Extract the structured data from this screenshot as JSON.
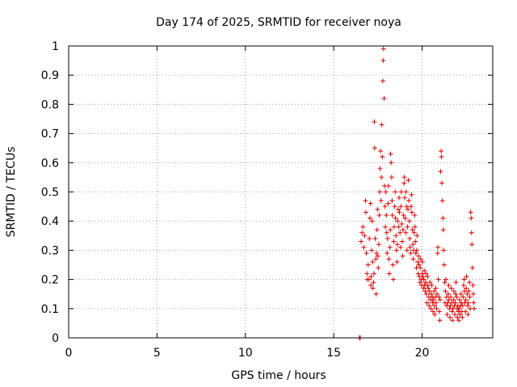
{
  "chart_data": {
    "type": "scatter",
    "title": "Day 174 of 2025, SRMTID for receiver noya",
    "xlabel": "GPS time / hours",
    "ylabel": "SRMTID / TECUs",
    "xlim": [
      0,
      24
    ],
    "ylim": [
      0,
      1
    ],
    "xticks": [
      0,
      5,
      10,
      15,
      20
    ],
    "xtick_labels": [
      "0",
      "5",
      "10",
      "15",
      "20"
    ],
    "yticks": [
      0,
      0.1,
      0.2,
      0.3,
      0.4,
      0.5,
      0.6,
      0.7,
      0.8,
      0.9,
      1
    ],
    "ytick_labels": [
      "0",
      "0.1",
      "0.2",
      "0.3",
      "0.4",
      "0.5",
      "0.6",
      "0.7",
      "0.8",
      "0.9",
      "1"
    ],
    "grid": true,
    "marker": "+",
    "color": "#e00000",
    "series": [
      {
        "name": "SRMTID",
        "points": [
          [
            16.45,
            0.0
          ],
          [
            16.5,
            0.0
          ],
          [
            16.55,
            0.33
          ],
          [
            16.6,
            0.36
          ],
          [
            16.65,
            0.38
          ],
          [
            16.7,
            0.31
          ],
          [
            16.75,
            0.35
          ],
          [
            16.8,
            0.47
          ],
          [
            16.82,
            0.43
          ],
          [
            16.85,
            0.29
          ],
          [
            16.88,
            0.22
          ],
          [
            16.9,
            0.2
          ],
          [
            16.95,
            0.25
          ],
          [
            17.0,
            0.2
          ],
          [
            17.02,
            0.34
          ],
          [
            17.05,
            0.41
          ],
          [
            17.08,
            0.46
          ],
          [
            17.1,
            0.18
          ],
          [
            17.12,
            0.21
          ],
          [
            17.15,
            0.3
          ],
          [
            17.18,
            0.4
          ],
          [
            17.2,
            0.26
          ],
          [
            17.22,
            0.17
          ],
          [
            17.25,
            0.19
          ],
          [
            17.28,
            0.22
          ],
          [
            17.3,
            0.74
          ],
          [
            17.32,
            0.65
          ],
          [
            17.35,
            0.34
          ],
          [
            17.38,
            0.27
          ],
          [
            17.4,
            0.15
          ],
          [
            17.42,
            0.29
          ],
          [
            17.45,
            0.37
          ],
          [
            17.48,
            0.44
          ],
          [
            17.5,
            0.28
          ],
          [
            17.52,
            0.24
          ],
          [
            17.55,
            0.32
          ],
          [
            17.58,
            0.42
          ],
          [
            17.6,
            0.5
          ],
          [
            17.62,
            0.58
          ],
          [
            17.65,
            0.64
          ],
          [
            17.68,
            0.47
          ],
          [
            17.7,
            0.55
          ],
          [
            17.72,
            0.73
          ],
          [
            17.75,
            0.62
          ],
          [
            17.78,
            0.88
          ],
          [
            17.8,
            0.95
          ],
          [
            17.82,
            0.99
          ],
          [
            17.85,
            0.82
          ],
          [
            17.88,
            0.52
          ],
          [
            17.9,
            0.45
          ],
          [
            17.92,
            0.38
          ],
          [
            17.95,
            0.5
          ],
          [
            17.98,
            0.42
          ],
          [
            18.0,
            0.36
          ],
          [
            18.02,
            0.29
          ],
          [
            18.05,
            0.34
          ],
          [
            18.08,
            0.46
          ],
          [
            18.1,
            0.52
          ],
          [
            18.12,
            0.27
          ],
          [
            18.15,
            0.22
          ],
          [
            18.18,
            0.31
          ],
          [
            18.2,
            0.37
          ],
          [
            18.22,
            0.63
          ],
          [
            18.25,
            0.6
          ],
          [
            18.28,
            0.55
          ],
          [
            18.3,
            0.47
          ],
          [
            18.32,
            0.42
          ],
          [
            18.35,
            0.25
          ],
          [
            18.38,
            0.2
          ],
          [
            18.4,
            0.33
          ],
          [
            18.42,
            0.38
          ],
          [
            18.45,
            0.45
          ],
          [
            18.48,
            0.5
          ],
          [
            18.5,
            0.41
          ],
          [
            18.52,
            0.35
          ],
          [
            18.55,
            0.3
          ],
          [
            18.58,
            0.26
          ],
          [
            18.6,
            0.32
          ],
          [
            18.62,
            0.4
          ],
          [
            18.65,
            0.44
          ],
          [
            18.68,
            0.38
          ],
          [
            18.7,
            0.48
          ],
          [
            18.72,
            0.43
          ],
          [
            18.75,
            0.36
          ],
          [
            18.78,
            0.31
          ],
          [
            18.8,
            0.45
          ],
          [
            18.82,
            0.5
          ],
          [
            18.85,
            0.39
          ],
          [
            18.88,
            0.33
          ],
          [
            18.9,
            0.28
          ],
          [
            18.92,
            0.37
          ],
          [
            18.95,
            0.42
          ],
          [
            18.98,
            0.53
          ],
          [
            19.0,
            0.55
          ],
          [
            19.02,
            0.48
          ],
          [
            19.05,
            0.41
          ],
          [
            19.08,
            0.36
          ],
          [
            19.1,
            0.5
          ],
          [
            19.12,
            0.45
          ],
          [
            19.15,
            0.3
          ],
          [
            19.18,
            0.38
          ],
          [
            19.2,
            0.44
          ],
          [
            19.22,
            0.54
          ],
          [
            19.25,
            0.47
          ],
          [
            19.28,
            0.4
          ],
          [
            19.3,
            0.34
          ],
          [
            19.32,
            0.31
          ],
          [
            19.35,
            0.29
          ],
          [
            19.38,
            0.45
          ],
          [
            19.4,
            0.49
          ],
          [
            19.42,
            0.43
          ],
          [
            19.45,
            0.37
          ],
          [
            19.48,
            0.32
          ],
          [
            19.5,
            0.27
          ],
          [
            19.52,
            0.3
          ],
          [
            19.55,
            0.36
          ],
          [
            19.58,
            0.42
          ],
          [
            19.6,
            0.38
          ],
          [
            19.62,
            0.33
          ],
          [
            19.65,
            0.29
          ],
          [
            19.68,
            0.24
          ],
          [
            19.7,
            0.3
          ],
          [
            19.72,
            0.35
          ],
          [
            19.75,
            0.26
          ],
          [
            19.78,
            0.22
          ],
          [
            19.8,
            0.28
          ],
          [
            19.82,
            0.25
          ],
          [
            19.85,
            0.21
          ],
          [
            19.88,
            0.19
          ],
          [
            19.9,
            0.24
          ],
          [
            19.92,
            0.27
          ],
          [
            19.95,
            0.2
          ],
          [
            19.98,
            0.18
          ],
          [
            20.0,
            0.22
          ],
          [
            20.02,
            0.26
          ],
          [
            20.05,
            0.21
          ],
          [
            20.08,
            0.17
          ],
          [
            20.1,
            0.2
          ],
          [
            20.12,
            0.23
          ],
          [
            20.15,
            0.18
          ],
          [
            20.18,
            0.16
          ],
          [
            20.2,
            0.19
          ],
          [
            20.22,
            0.22
          ],
          [
            20.25,
            0.15
          ],
          [
            20.28,
            0.12
          ],
          [
            20.3,
            0.18
          ],
          [
            20.32,
            0.21
          ],
          [
            20.35,
            0.17
          ],
          [
            20.38,
            0.14
          ],
          [
            20.4,
            0.11
          ],
          [
            20.42,
            0.16
          ],
          [
            20.45,
            0.19
          ],
          [
            20.48,
            0.13
          ],
          [
            20.5,
            0.1
          ],
          [
            20.52,
            0.15
          ],
          [
            20.55,
            0.18
          ],
          [
            20.58,
            0.14
          ],
          [
            20.6,
            0.12
          ],
          [
            20.62,
            0.09
          ],
          [
            20.65,
            0.13
          ],
          [
            20.68,
            0.16
          ],
          [
            20.7,
            0.11
          ],
          [
            20.72,
            0.08
          ],
          [
            20.75,
            0.14
          ],
          [
            20.78,
            0.17
          ],
          [
            20.8,
            0.12
          ],
          [
            20.82,
            0.1
          ],
          [
            20.85,
            0.15
          ],
          [
            20.88,
            0.29
          ],
          [
            20.9,
            0.31
          ],
          [
            20.92,
            0.2
          ],
          [
            20.95,
            0.14
          ],
          [
            20.98,
            0.09
          ],
          [
            21.0,
            0.06
          ],
          [
            21.02,
            0.13
          ],
          [
            21.05,
            0.57
          ],
          [
            21.08,
            0.64
          ],
          [
            21.1,
            0.62
          ],
          [
            21.12,
            0.53
          ],
          [
            21.15,
            0.47
          ],
          [
            21.18,
            0.41
          ],
          [
            21.2,
            0.37
          ],
          [
            21.22,
            0.3
          ],
          [
            21.25,
            0.25
          ],
          [
            21.28,
            0.19
          ],
          [
            21.3,
            0.12
          ],
          [
            21.32,
            0.16
          ],
          [
            21.35,
            0.2
          ],
          [
            21.38,
            0.14
          ],
          [
            21.4,
            0.11
          ],
          [
            21.42,
            0.08
          ],
          [
            21.45,
            0.12
          ],
          [
            21.48,
            0.15
          ],
          [
            21.5,
            0.18
          ],
          [
            21.52,
            0.13
          ],
          [
            21.55,
            0.1
          ],
          [
            21.58,
            0.07
          ],
          [
            21.6,
            0.11
          ],
          [
            21.62,
            0.14
          ],
          [
            21.65,
            0.17
          ],
          [
            21.68,
            0.12
          ],
          [
            21.7,
            0.09
          ],
          [
            21.72,
            0.06
          ],
          [
            21.75,
            0.1
          ],
          [
            21.78,
            0.13
          ],
          [
            21.8,
            0.16
          ],
          [
            21.82,
            0.11
          ],
          [
            21.85,
            0.08
          ],
          [
            21.88,
            0.12
          ],
          [
            21.9,
            0.15
          ],
          [
            21.92,
            0.19
          ],
          [
            21.95,
            0.14
          ],
          [
            21.98,
            0.1
          ],
          [
            22.0,
            0.07
          ],
          [
            22.02,
            0.11
          ],
          [
            22.05,
            0.09
          ],
          [
            22.08,
            0.06
          ],
          [
            22.1,
            0.1
          ],
          [
            22.12,
            0.13
          ],
          [
            22.15,
            0.08
          ],
          [
            22.18,
            0.11
          ],
          [
            22.2,
            0.15
          ],
          [
            22.22,
            0.12
          ],
          [
            22.25,
            0.09
          ],
          [
            22.28,
            0.07
          ],
          [
            22.3,
            0.11
          ],
          [
            22.32,
            0.14
          ],
          [
            22.35,
            0.18
          ],
          [
            22.38,
            0.2
          ],
          [
            22.4,
            0.16
          ],
          [
            22.42,
            0.12
          ],
          [
            22.45,
            0.09
          ],
          [
            22.48,
            0.13
          ],
          [
            22.5,
            0.17
          ],
          [
            22.52,
            0.21
          ],
          [
            22.55,
            0.15
          ],
          [
            22.58,
            0.11
          ],
          [
            22.6,
            0.08
          ],
          [
            22.62,
            0.12
          ],
          [
            22.65,
            0.16
          ],
          [
            22.68,
            0.19
          ],
          [
            22.7,
            0.14
          ],
          [
            22.72,
            0.1
          ],
          [
            22.75,
            0.43
          ],
          [
            22.78,
            0.41
          ],
          [
            22.8,
            0.36
          ],
          [
            22.82,
            0.32
          ],
          [
            22.85,
            0.24
          ],
          [
            22.88,
            0.18
          ],
          [
            22.9,
            0.15
          ],
          [
            22.92,
            0.12
          ],
          [
            22.95,
            0.1
          ]
        ]
      }
    ]
  }
}
